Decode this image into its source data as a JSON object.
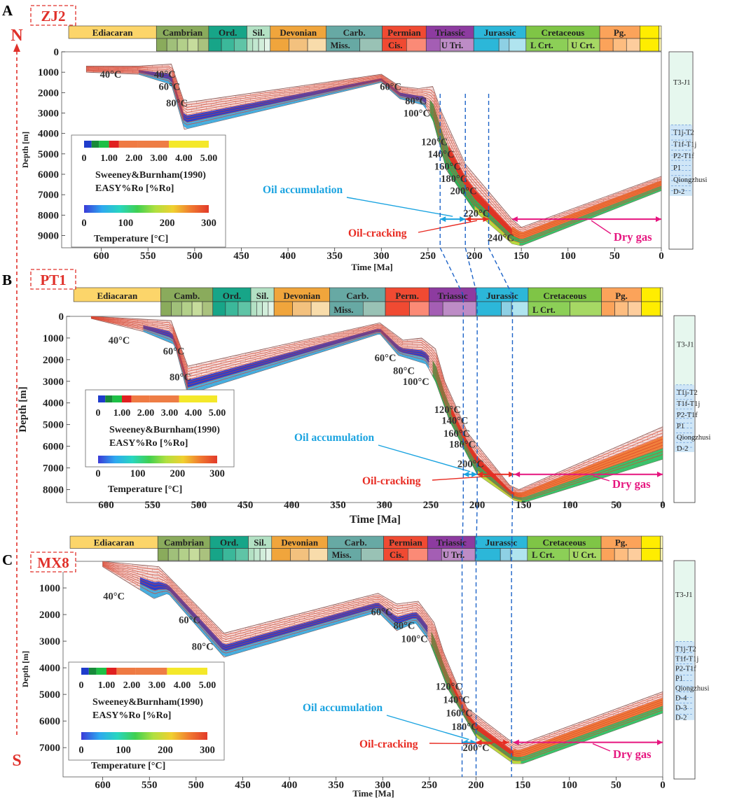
{
  "figure": {
    "panel_letters": [
      "A",
      "B",
      "C"
    ],
    "well_names": [
      "ZJ2",
      "PT1",
      "MX8"
    ],
    "north_label": "N",
    "south_label": "S"
  },
  "colors": {
    "axis_red": "#e0302a",
    "oil_blue": "#1aa3e0",
    "dry_gas_pink": "#e6157f",
    "isotherm": "#d9402a",
    "section_fill": "#f6dedc",
    "brick": "#c79d99",
    "guide_dash": "#1e64c8"
  },
  "legend": {
    "ro_ticks": [
      "0",
      "1.00",
      "2.00",
      "3.00",
      "4.00",
      "5.00"
    ],
    "ro_colors": [
      "#1f3ccc",
      "#188a3a",
      "#1ec046",
      "#e02020",
      "#ef7a43",
      "#ee7d45",
      "#f4e82a"
    ],
    "ro_line1": "Sweeney&Burnham(1990)",
    "ro_line2": "EASY%Ro [%Ro]",
    "temp_ticks": [
      "0",
      "100",
      "200",
      "300"
    ],
    "temp_title": "Temperature [°C]",
    "temp_gradient": [
      "#3a3ad8",
      "#2ea8f0",
      "#28d6c0",
      "#40d050",
      "#b0e040",
      "#f0d030",
      "#f07a30",
      "#e23a2a"
    ]
  },
  "stratigraphy": {
    "periods": [
      {
        "label": "Ediacaran",
        "start": 635,
        "end": 541,
        "color": "#fcd56a"
      },
      {
        "label": "Cambrian",
        "start": 541,
        "end": 485,
        "color": "#8aab5c"
      },
      {
        "label": "Ord.",
        "start": 485,
        "end": 444,
        "color": "#17a588"
      },
      {
        "label": "Sil.",
        "start": 444,
        "end": 419,
        "color": "#b3e1c4"
      },
      {
        "label": "Devonian",
        "start": 419,
        "end": 359,
        "color": "#f0a53c"
      },
      {
        "label": "Carb.",
        "start": 359,
        "end": 299,
        "color": "#67a9a4"
      },
      {
        "label": "Permian",
        "start": 299,
        "end": 252,
        "color": "#f04a32"
      },
      {
        "label": "Triassic",
        "start": 252,
        "end": 201,
        "color": "#8d3ba0"
      },
      {
        "label": "Jurassic",
        "start": 201,
        "end": 145,
        "color": "#2cb7d9"
      },
      {
        "label": "Cretaceous",
        "start": 145,
        "end": 66,
        "color": "#7fc546"
      },
      {
        "label": "Pg.",
        "start": 66,
        "end": 23,
        "color": "#fba35a"
      },
      {
        "label": "",
        "start": 23,
        "end": 2.6,
        "color": "#ffed00"
      },
      {
        "label": "",
        "start": 2.6,
        "end": 0,
        "color": "#fef6b1"
      }
    ],
    "period_labels_B": [
      "Ediacaran",
      "Camb.",
      "Ord.",
      "Sil.",
      "Devonian",
      "Carb.",
      "Perm.",
      "Triassic",
      "Jurassic",
      "Cretaceous",
      "Pg."
    ],
    "sub_labels": {
      "miss": "Miss.",
      "cis": "Cis.",
      "utri": "U Tri.",
      "lcrt": "L Crt.",
      "ucrt": "U Crt."
    },
    "sub_cells": [
      {
        "start": 541,
        "end": 485,
        "n": 5,
        "colors": [
          "#8aab5c",
          "#a0c07a",
          "#b3d08a",
          "#c6dc9c",
          "#aac27e"
        ]
      },
      {
        "start": 485,
        "end": 444,
        "n": 3,
        "colors": [
          "#17a588",
          "#3bb89a",
          "#5fc4a6"
        ]
      },
      {
        "start": 444,
        "end": 419,
        "n": 4,
        "colors": [
          "#b3e1c4",
          "#c2e8d0",
          "#d2eedb",
          "#e3f4e8"
        ]
      },
      {
        "start": 419,
        "end": 359,
        "n": 3,
        "colors": [
          "#f0a53c",
          "#f3c17e",
          "#f8dcab"
        ]
      },
      {
        "start": 359,
        "end": 323,
        "n": 1,
        "colors": [
          "#67a9a4"
        ]
      },
      {
        "start": 323,
        "end": 299,
        "n": 1,
        "colors": [
          "#99c2b5"
        ]
      },
      {
        "start": 299,
        "end": 273,
        "n": 1,
        "colors": [
          "#f04a32"
        ]
      },
      {
        "start": 273,
        "end": 252,
        "n": 1,
        "colors": [
          "#fb8a76"
        ]
      },
      {
        "start": 252,
        "end": 237,
        "n": 1,
        "colors": [
          "#a45eb4"
        ]
      },
      {
        "start": 237,
        "end": 201,
        "n": 1,
        "colors": [
          "#bd8cc6"
        ]
      },
      {
        "start": 201,
        "end": 174,
        "n": 1,
        "colors": [
          "#2cb7d9"
        ]
      },
      {
        "start": 174,
        "end": 163,
        "n": 1,
        "colors": [
          "#8ed0e4"
        ]
      },
      {
        "start": 163,
        "end": 145,
        "n": 1,
        "colors": [
          "#b0e4ef"
        ]
      },
      {
        "start": 145,
        "end": 100,
        "n": 1,
        "colors": [
          "#8ccf57"
        ]
      },
      {
        "start": 100,
        "end": 66,
        "n": 1,
        "colors": [
          "#a6d864"
        ]
      },
      {
        "start": 66,
        "end": 23,
        "n": 3,
        "colors": [
          "#fba35a",
          "#fdbd80",
          "#fdcd9d"
        ]
      },
      {
        "start": 23,
        "end": 2.6,
        "n": 1,
        "colors": [
          "#ffed00"
        ]
      },
      {
        "start": 2.6,
        "end": 0,
        "n": 1,
        "colors": [
          "#fef6b1"
        ]
      }
    ]
  },
  "chart_data": [
    {
      "type": "area",
      "panel": "A",
      "well": "ZJ2",
      "xlabel": "Time [Ma]",
      "ylabel": "Depth [m]",
      "xlim": [
        620,
        0
      ],
      "xticks": [
        "600",
        "550",
        "500",
        "450",
        "400",
        "350",
        "300",
        "250",
        "200",
        "150",
        "100",
        "50",
        "0"
      ],
      "ylim": [
        0,
        9600
      ],
      "yticks": [
        "0",
        "1000",
        "2000",
        "3000",
        "4000",
        "5000",
        "6000",
        "7000",
        "8000",
        "9000"
      ],
      "burial_top": [
        [
          616,
          700
        ],
        [
          560,
          700
        ],
        [
          525,
          600
        ],
        [
          511,
          2500
        ],
        [
          300,
          1100
        ],
        [
          280,
          1700
        ],
        [
          260,
          1800
        ],
        [
          245,
          1700
        ],
        [
          235,
          3000
        ],
        [
          210,
          5500
        ],
        [
          160,
          8200
        ],
        [
          150,
          8600
        ],
        [
          0,
          6100
        ]
      ],
      "burial_base": [
        [
          616,
          1000
        ],
        [
          560,
          1100
        ],
        [
          525,
          1600
        ],
        [
          511,
          3800
        ],
        [
          300,
          1500
        ],
        [
          280,
          2300
        ],
        [
          255,
          2600
        ],
        [
          245,
          3300
        ],
        [
          230,
          5800
        ],
        [
          200,
          7800
        ],
        [
          160,
          9400
        ],
        [
          150,
          9500
        ],
        [
          0,
          6800
        ]
      ],
      "isotherm_labels": [
        {
          "label": "40°C",
          "t": 590,
          "d": 1100
        },
        {
          "label": "40°C",
          "t": 532,
          "d": 1100
        },
        {
          "label": "60°C",
          "t": 527,
          "d": 1700
        },
        {
          "label": "80°C",
          "t": 519,
          "d": 2500
        },
        {
          "label": "60°C",
          "t": 290,
          "d": 1700
        },
        {
          "label": "80°C",
          "t": 263,
          "d": 2400
        },
        {
          "label": "100°C",
          "t": 262,
          "d": 3000
        },
        {
          "label": "120°C",
          "t": 243,
          "d": 4400
        },
        {
          "label": "140°C",
          "t": 236,
          "d": 5000
        },
        {
          "label": "160°C",
          "t": 229,
          "d": 5600
        },
        {
          "label": "180°C",
          "t": 222,
          "d": 6200
        },
        {
          "label": "200°C",
          "t": 212,
          "d": 6800
        },
        {
          "label": "220°C",
          "t": 198,
          "d": 7900
        },
        {
          "label": "240°C",
          "t": 172,
          "d": 9100
        }
      ],
      "windows": {
        "oil_accumulation": [
          237,
          210
        ],
        "oil_cracking": [
          210,
          185
        ],
        "dry_gas": [
          160,
          0
        ]
      },
      "annotations": {
        "oil_accumulation": "Oil accumulation",
        "oil_cracking": "Oil-cracking",
        "dry_gas": "Dry gas"
      },
      "column_units": [
        "T3-J1",
        "T1j-T2",
        "T1f-T1j",
        "P2-T1f",
        "P1",
        "Qiongzhusi",
        "D-2"
      ]
    },
    {
      "type": "area",
      "panel": "B",
      "well": "PT1",
      "xlabel": "Time [Ma]",
      "ylabel": "Depth [m]",
      "xlim": [
        620,
        0
      ],
      "xticks": [
        "600",
        "550",
        "500",
        "450",
        "400",
        "350",
        "300",
        "250",
        "200",
        "150",
        "100",
        "50",
        "0"
      ],
      "ylim": [
        0,
        8600
      ],
      "yticks": [
        "0",
        "1000",
        "2000",
        "3000",
        "4000",
        "5000",
        "6000",
        "7000",
        "8000"
      ],
      "burial_top": [
        [
          616,
          0
        ],
        [
          530,
          200
        ],
        [
          512,
          2300
        ],
        [
          305,
          300
        ],
        [
          280,
          1100
        ],
        [
          260,
          1000
        ],
        [
          245,
          1500
        ],
        [
          235,
          3000
        ],
        [
          210,
          5400
        ],
        [
          165,
          7800
        ],
        [
          155,
          8000
        ],
        [
          0,
          5100
        ]
      ],
      "burial_base": [
        [
          616,
          100
        ],
        [
          560,
          700
        ],
        [
          526,
          1300
        ],
        [
          512,
          3600
        ],
        [
          305,
          800
        ],
        [
          285,
          1800
        ],
        [
          255,
          2200
        ],
        [
          245,
          3000
        ],
        [
          230,
          4800
        ],
        [
          200,
          7300
        ],
        [
          160,
          8500
        ],
        [
          150,
          8600
        ],
        [
          0,
          6600
        ]
      ],
      "isotherm_labels": [
        {
          "label": "40°C",
          "t": 586,
          "d": 1100
        },
        {
          "label": "60°C",
          "t": 527,
          "d": 1600
        },
        {
          "label": "80°C",
          "t": 520,
          "d": 2800
        },
        {
          "label": "60°C",
          "t": 299,
          "d": 1900
        },
        {
          "label": "80°C",
          "t": 279,
          "d": 2500
        },
        {
          "label": "100°C",
          "t": 266,
          "d": 3000
        },
        {
          "label": "120°C",
          "t": 232,
          "d": 4300
        },
        {
          "label": "140°C",
          "t": 224,
          "d": 4800
        },
        {
          "label": "160°C",
          "t": 222,
          "d": 5400
        },
        {
          "label": "180°C",
          "t": 216,
          "d": 5900
        },
        {
          "label": "200°C",
          "t": 207,
          "d": 6800
        }
      ],
      "windows": {
        "oil_accumulation": [
          215,
          200
        ],
        "oil_cracking": [
          200,
          160
        ],
        "dry_gas": [
          160,
          0
        ]
      },
      "annotations": {
        "oil_accumulation": "Oil accumulation",
        "oil_cracking": "Oil-cracking",
        "dry_gas": "Dry gas"
      },
      "column_units": [
        "T3-J1",
        "T1j-T2",
        "T1f-T1j",
        "P2-T1f",
        "P1",
        "Qiongzhusi",
        "D-2"
      ]
    },
    {
      "type": "area",
      "panel": "C",
      "well": "MX8",
      "xlabel": "Time [Ma]",
      "ylabel": "Depth [m]",
      "xlim": [
        620,
        0
      ],
      "xticks": [
        "600",
        "550",
        "500",
        "450",
        "400",
        "350",
        "300",
        "250",
        "200",
        "150",
        "100",
        "50",
        "0"
      ],
      "ylim": [
        0,
        8100
      ],
      "yticks": [
        "0",
        "1000",
        "2000",
        "3000",
        "4000",
        "5000",
        "6000",
        "7000"
      ],
      "burial_top": [
        [
          600,
          0
        ],
        [
          540,
          200
        ],
        [
          470,
          2700
        ],
        [
          305,
          1200
        ],
        [
          285,
          1600
        ],
        [
          262,
          1500
        ],
        [
          245,
          2300
        ],
        [
          235,
          3400
        ],
        [
          210,
          5500
        ],
        [
          165,
          6700
        ],
        [
          155,
          6900
        ],
        [
          0,
          4900
        ]
      ],
      "burial_base": [
        [
          600,
          200
        ],
        [
          545,
          1400
        ],
        [
          530,
          1200
        ],
        [
          470,
          3600
        ],
        [
          305,
          1900
        ],
        [
          285,
          2600
        ],
        [
          265,
          2300
        ],
        [
          250,
          3000
        ],
        [
          230,
          4800
        ],
        [
          200,
          6600
        ],
        [
          160,
          7600
        ],
        [
          150,
          7600
        ],
        [
          0,
          5700
        ]
      ],
      "isotherm_labels": [
        {
          "label": "40°C",
          "t": 588,
          "d": 1300
        },
        {
          "label": "60°C",
          "t": 507,
          "d": 2200
        },
        {
          "label": "80°C",
          "t": 493,
          "d": 3200
        },
        {
          "label": "60°C",
          "t": 301,
          "d": 1900
        },
        {
          "label": "80°C",
          "t": 277,
          "d": 2400
        },
        {
          "label": "100°C",
          "t": 266,
          "d": 2900
        },
        {
          "label": "120°C",
          "t": 229,
          "d": 4700
        },
        {
          "label": "140°C",
          "t": 221,
          "d": 5200
        },
        {
          "label": "160°C",
          "t": 218,
          "d": 5700
        },
        {
          "label": "180°C",
          "t": 212,
          "d": 6200
        },
        {
          "label": "200°C",
          "t": 200,
          "d": 7000
        }
      ],
      "windows": {
        "oil_accumulation": [
          215,
          200
        ],
        "oil_cracking": [
          200,
          165
        ],
        "dry_gas": [
          160,
          0
        ]
      },
      "annotations": {
        "oil_accumulation": "Oil accumulation",
        "oil_cracking": "Oil-cracking",
        "dry_gas": "Dry gas"
      },
      "column_units": [
        "T3-J1",
        "T1j-T2",
        "T1f-T1j",
        "P2-T1f",
        "P1",
        "Qiongzhusi",
        "D-4",
        "D-3",
        "D-2"
      ]
    }
  ],
  "guides": {
    "x_values": [
      237,
      215,
      205,
      200,
      180,
      165
    ]
  }
}
